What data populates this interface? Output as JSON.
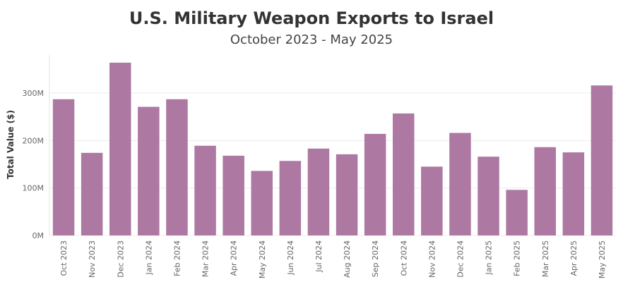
{
  "chart_data": {
    "type": "bar",
    "title": "U.S. Military Weapon Exports to Israel",
    "subtitle": "October 2023 - May 2025",
    "ylabel": "Total Value ($)",
    "xlabel": "",
    "ylim": [
      0,
      370
    ],
    "yticks": [
      0,
      100,
      200,
      300
    ],
    "ytick_labels": [
      "0M",
      "100M",
      "200M",
      "300M"
    ],
    "grid": true,
    "bar_color": "#ad78a2",
    "categories": [
      "Oct 2023",
      "Nov 2023",
      "Dec 2023",
      "Jan 2024",
      "Feb 2024",
      "Mar 2024",
      "Apr 2024",
      "May 2024",
      "Jun 2024",
      "Jul 2024",
      "Aug 2024",
      "Sep 2024",
      "Oct 2024",
      "Nov 2024",
      "Dec 2024",
      "Jan 2025",
      "Feb 2025",
      "Mar 2025",
      "Apr 2025",
      "May 2025"
    ],
    "values": [
      287,
      174,
      364,
      271,
      287,
      189,
      168,
      136,
      157,
      183,
      171,
      214,
      257,
      145,
      216,
      166,
      96,
      186,
      175,
      316
    ]
  }
}
